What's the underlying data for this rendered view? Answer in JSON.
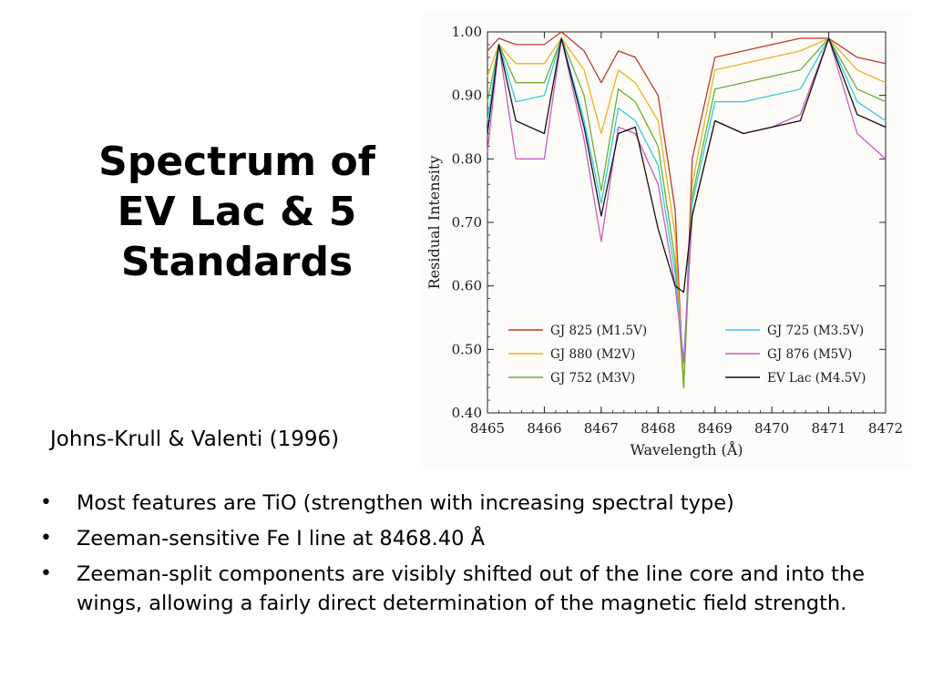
{
  "slide": {
    "title_lines": [
      "Spectrum of",
      "EV Lac & 5",
      "Standards"
    ],
    "citation": "Johns-Krull & Valenti (1996)",
    "bullets": [
      "Most features are TiO (strengthen with increasing spectral type)",
      "Zeeman-sensitive Fe I line at 8468.40 Å",
      "Zeeman-split components are visibly shifted out of the line core and into the wings, allowing a fairly direct determination of the magnetic field strength."
    ],
    "bullet_glyph": "•"
  },
  "chart_data": {
    "type": "line",
    "xlabel": "Wavelength (Å)",
    "ylabel": "Residual Intensity",
    "xlim": [
      8465,
      8472
    ],
    "ylim": [
      0.4,
      1.0
    ],
    "x_ticks": [
      "8465",
      "8466",
      "8467",
      "8468",
      "8469",
      "8470",
      "8471",
      "8472"
    ],
    "y_ticks": [
      "1.00",
      "0.90",
      "0.80",
      "0.70",
      "0.60",
      "0.50",
      "0.40"
    ],
    "legend_placement": "bottom, two columns",
    "series": [
      {
        "name": "GJ 825 (M1.5V)",
        "color": "#c0392b",
        "x": [
          8465.0,
          8465.2,
          8465.5,
          8466.0,
          8466.3,
          8466.7,
          8467.0,
          8467.3,
          8467.6,
          8468.0,
          8468.3,
          8468.45,
          8468.6,
          8469.0,
          8469.5,
          8470.0,
          8470.5,
          8471.0,
          8471.5,
          8472.0
        ],
        "y": [
          0.97,
          0.99,
          0.98,
          0.98,
          1.0,
          0.97,
          0.92,
          0.97,
          0.96,
          0.9,
          0.72,
          0.44,
          0.8,
          0.96,
          0.97,
          0.98,
          0.99,
          0.99,
          0.96,
          0.95
        ]
      },
      {
        "name": "GJ 880 (M2V)",
        "color": "#e6b422",
        "x": [
          8465.0,
          8465.2,
          8465.5,
          8466.0,
          8466.3,
          8466.7,
          8467.0,
          8467.3,
          8467.6,
          8468.0,
          8468.3,
          8468.45,
          8468.6,
          8469.0,
          8469.5,
          8470.0,
          8470.5,
          8471.0,
          8471.5,
          8472.0
        ],
        "y": [
          0.93,
          0.98,
          0.95,
          0.95,
          0.99,
          0.94,
          0.84,
          0.94,
          0.92,
          0.86,
          0.68,
          0.44,
          0.76,
          0.94,
          0.95,
          0.96,
          0.97,
          0.99,
          0.94,
          0.92
        ]
      },
      {
        "name": "GJ 752 (M3V)",
        "color": "#6aae3a",
        "x": [
          8465.0,
          8465.2,
          8465.5,
          8466.0,
          8466.3,
          8466.7,
          8467.0,
          8467.3,
          8467.6,
          8468.0,
          8468.3,
          8468.45,
          8468.6,
          8469.0,
          8469.5,
          8470.0,
          8470.5,
          8471.0,
          8471.5,
          8472.0
        ],
        "y": [
          0.89,
          0.98,
          0.92,
          0.92,
          0.99,
          0.9,
          0.75,
          0.91,
          0.89,
          0.82,
          0.64,
          0.44,
          0.74,
          0.91,
          0.92,
          0.93,
          0.94,
          0.99,
          0.91,
          0.89
        ]
      },
      {
        "name": "GJ 725 (M3.5V)",
        "color": "#2ecbe0",
        "x": [
          8465.0,
          8465.2,
          8465.5,
          8466.0,
          8466.3,
          8466.7,
          8467.0,
          8467.3,
          8467.6,
          8468.0,
          8468.3,
          8468.45,
          8468.6,
          8469.0,
          8469.5,
          8470.0,
          8470.5,
          8471.0,
          8471.5,
          8472.0
        ],
        "y": [
          0.86,
          0.98,
          0.89,
          0.9,
          0.99,
          0.86,
          0.73,
          0.88,
          0.86,
          0.79,
          0.62,
          0.48,
          0.73,
          0.89,
          0.89,
          0.9,
          0.91,
          0.99,
          0.89,
          0.86
        ]
      },
      {
        "name": "GJ 876 (M5V)",
        "color": "#cc5bc3",
        "x": [
          8465.0,
          8465.2,
          8465.5,
          8466.0,
          8466.3,
          8466.7,
          8467.0,
          8467.3,
          8467.6,
          8468.0,
          8468.3,
          8468.45,
          8468.6,
          8469.0,
          8469.5,
          8470.0,
          8470.5,
          8471.0,
          8471.5,
          8472.0
        ],
        "y": [
          0.81,
          0.98,
          0.8,
          0.8,
          0.99,
          0.83,
          0.67,
          0.85,
          0.84,
          0.76,
          0.6,
          0.48,
          0.71,
          0.86,
          0.84,
          0.85,
          0.87,
          0.99,
          0.84,
          0.8
        ]
      },
      {
        "name": "EV Lac (M4.5V)",
        "color": "#111111",
        "x": [
          8465.0,
          8465.2,
          8465.5,
          8466.0,
          8466.3,
          8466.7,
          8467.0,
          8467.3,
          8467.6,
          8468.0,
          8468.3,
          8468.45,
          8468.6,
          8469.0,
          8469.5,
          8470.0,
          8470.5,
          8471.0,
          8471.5,
          8472.0
        ],
        "y": [
          0.84,
          0.98,
          0.86,
          0.84,
          0.99,
          0.85,
          0.71,
          0.84,
          0.85,
          0.69,
          0.6,
          0.59,
          0.71,
          0.86,
          0.84,
          0.85,
          0.86,
          0.99,
          0.87,
          0.85
        ]
      }
    ]
  }
}
